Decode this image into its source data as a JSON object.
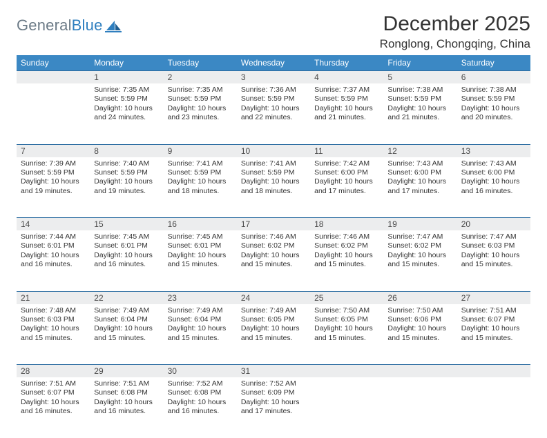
{
  "brand": {
    "name_a": "General",
    "name_b": "Blue"
  },
  "title": "December 2025",
  "location": "Ronglong, Chongqing, China",
  "header_bg": "#3b88c4",
  "rule_color": "#2f6fa3",
  "days_of_week": [
    "Sunday",
    "Monday",
    "Tuesday",
    "Wednesday",
    "Thursday",
    "Friday",
    "Saturday"
  ],
  "weeks": [
    [
      null,
      {
        "n": "1",
        "sr": "7:35 AM",
        "ss": "5:59 PM",
        "dl": "10 hours and 24 minutes."
      },
      {
        "n": "2",
        "sr": "7:35 AM",
        "ss": "5:59 PM",
        "dl": "10 hours and 23 minutes."
      },
      {
        "n": "3",
        "sr": "7:36 AM",
        "ss": "5:59 PM",
        "dl": "10 hours and 22 minutes."
      },
      {
        "n": "4",
        "sr": "7:37 AM",
        "ss": "5:59 PM",
        "dl": "10 hours and 21 minutes."
      },
      {
        "n": "5",
        "sr": "7:38 AM",
        "ss": "5:59 PM",
        "dl": "10 hours and 21 minutes."
      },
      {
        "n": "6",
        "sr": "7:38 AM",
        "ss": "5:59 PM",
        "dl": "10 hours and 20 minutes."
      }
    ],
    [
      {
        "n": "7",
        "sr": "7:39 AM",
        "ss": "5:59 PM",
        "dl": "10 hours and 19 minutes."
      },
      {
        "n": "8",
        "sr": "7:40 AM",
        "ss": "5:59 PM",
        "dl": "10 hours and 19 minutes."
      },
      {
        "n": "9",
        "sr": "7:41 AM",
        "ss": "5:59 PM",
        "dl": "10 hours and 18 minutes."
      },
      {
        "n": "10",
        "sr": "7:41 AM",
        "ss": "5:59 PM",
        "dl": "10 hours and 18 minutes."
      },
      {
        "n": "11",
        "sr": "7:42 AM",
        "ss": "6:00 PM",
        "dl": "10 hours and 17 minutes."
      },
      {
        "n": "12",
        "sr": "7:43 AM",
        "ss": "6:00 PM",
        "dl": "10 hours and 17 minutes."
      },
      {
        "n": "13",
        "sr": "7:43 AM",
        "ss": "6:00 PM",
        "dl": "10 hours and 16 minutes."
      }
    ],
    [
      {
        "n": "14",
        "sr": "7:44 AM",
        "ss": "6:01 PM",
        "dl": "10 hours and 16 minutes."
      },
      {
        "n": "15",
        "sr": "7:45 AM",
        "ss": "6:01 PM",
        "dl": "10 hours and 16 minutes."
      },
      {
        "n": "16",
        "sr": "7:45 AM",
        "ss": "6:01 PM",
        "dl": "10 hours and 15 minutes."
      },
      {
        "n": "17",
        "sr": "7:46 AM",
        "ss": "6:02 PM",
        "dl": "10 hours and 15 minutes."
      },
      {
        "n": "18",
        "sr": "7:46 AM",
        "ss": "6:02 PM",
        "dl": "10 hours and 15 minutes."
      },
      {
        "n": "19",
        "sr": "7:47 AM",
        "ss": "6:02 PM",
        "dl": "10 hours and 15 minutes."
      },
      {
        "n": "20",
        "sr": "7:47 AM",
        "ss": "6:03 PM",
        "dl": "10 hours and 15 minutes."
      }
    ],
    [
      {
        "n": "21",
        "sr": "7:48 AM",
        "ss": "6:03 PM",
        "dl": "10 hours and 15 minutes."
      },
      {
        "n": "22",
        "sr": "7:49 AM",
        "ss": "6:04 PM",
        "dl": "10 hours and 15 minutes."
      },
      {
        "n": "23",
        "sr": "7:49 AM",
        "ss": "6:04 PM",
        "dl": "10 hours and 15 minutes."
      },
      {
        "n": "24",
        "sr": "7:49 AM",
        "ss": "6:05 PM",
        "dl": "10 hours and 15 minutes."
      },
      {
        "n": "25",
        "sr": "7:50 AM",
        "ss": "6:05 PM",
        "dl": "10 hours and 15 minutes."
      },
      {
        "n": "26",
        "sr": "7:50 AM",
        "ss": "6:06 PM",
        "dl": "10 hours and 15 minutes."
      },
      {
        "n": "27",
        "sr": "7:51 AM",
        "ss": "6:07 PM",
        "dl": "10 hours and 15 minutes."
      }
    ],
    [
      {
        "n": "28",
        "sr": "7:51 AM",
        "ss": "6:07 PM",
        "dl": "10 hours and 16 minutes."
      },
      {
        "n": "29",
        "sr": "7:51 AM",
        "ss": "6:08 PM",
        "dl": "10 hours and 16 minutes."
      },
      {
        "n": "30",
        "sr": "7:52 AM",
        "ss": "6:08 PM",
        "dl": "10 hours and 16 minutes."
      },
      {
        "n": "31",
        "sr": "7:52 AM",
        "ss": "6:09 PM",
        "dl": "10 hours and 17 minutes."
      },
      null,
      null,
      null
    ]
  ],
  "labels": {
    "sunrise": "Sunrise:",
    "sunset": "Sunset:",
    "daylight": "Daylight:"
  },
  "fonts": {
    "title_pt": 30,
    "location_pt": 17,
    "header_pt": 12,
    "daynum_pt": 12,
    "cell_pt": 10.5
  }
}
